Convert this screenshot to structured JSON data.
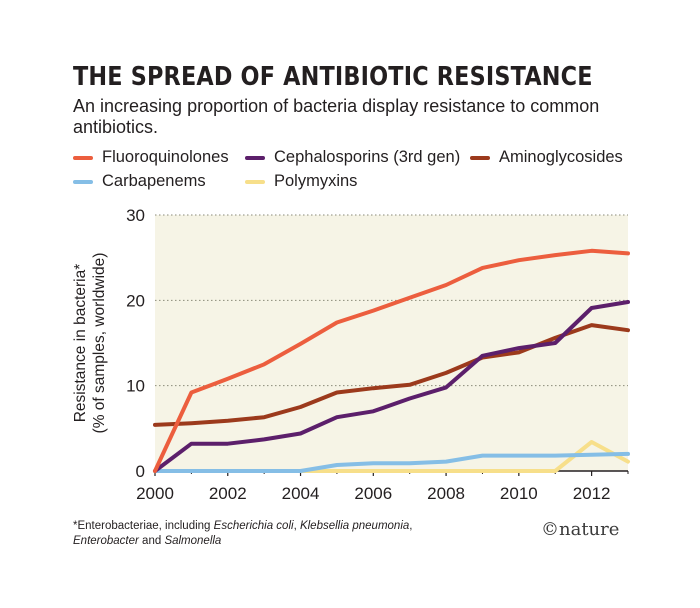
{
  "chart_data": {
    "type": "line",
    "title": "THE SPREAD OF ANTIBIOTIC RESISTANCE",
    "subtitle": "An increasing proportion of bacteria display resistance to common antibiotics.",
    "ylabel_line1": "Resistance in bacteria*",
    "ylabel_line2": "(% of samples, worldwide)",
    "xlabel": "",
    "ylim": [
      0,
      30
    ],
    "xlim": [
      2000,
      2013
    ],
    "x_ticks": [
      "2000",
      "2002",
      "2004",
      "2006",
      "2008",
      "2010",
      "2012"
    ],
    "y_ticks": [
      "0",
      "10",
      "20",
      "30"
    ],
    "grid": "horizontal dotted",
    "legend_position": "top",
    "x": [
      2000,
      2001,
      2002,
      2003,
      2004,
      2005,
      2006,
      2007,
      2008,
      2009,
      2010,
      2011,
      2012,
      2013
    ],
    "series": [
      {
        "name": "Fluoroquinolones",
        "color": "#ec5e3e",
        "values": [
          0,
          9.2,
          10.8,
          12.5,
          14.9,
          17.4,
          18.8,
          20.3,
          21.8,
          23.8,
          24.7,
          25.3,
          25.8,
          25.5
        ]
      },
      {
        "name": "Cephalosporins (3rd gen)",
        "color": "#5c1f6b",
        "values": [
          0,
          3.2,
          3.2,
          3.7,
          4.4,
          6.3,
          7.0,
          8.5,
          9.8,
          13.5,
          14.4,
          15.0,
          19.1,
          19.8
        ]
      },
      {
        "name": "Aminoglycosides",
        "color": "#9c3a1c",
        "values": [
          5.4,
          5.6,
          5.9,
          6.3,
          7.5,
          9.2,
          9.7,
          10.1,
          11.5,
          13.3,
          13.9,
          15.6,
          17.1,
          16.5
        ]
      },
      {
        "name": "Carbapenems",
        "color": "#85bee6",
        "values": [
          0,
          0,
          0,
          0,
          0,
          0.7,
          0.9,
          0.9,
          1.1,
          1.8,
          1.8,
          1.8,
          1.9,
          2.0
        ]
      },
      {
        "name": "Polymyxins",
        "color": "#f7df8a",
        "values": [
          0,
          0,
          0,
          0,
          0,
          0,
          0,
          0,
          0,
          0,
          0,
          0,
          3.4,
          1.1
        ]
      }
    ],
    "footnote_prefix": "*Enterobacteriae, including ",
    "footnote_sp1": "Escherichia coli",
    "footnote_sep1": ", ",
    "footnote_sp2": "Klebsellia pneumonia",
    "footnote_sep2": ",",
    "footnote_sp3": "Enterobacter",
    "footnote_and": " and ",
    "footnote_sp4": "Salmonella",
    "credit": "©nature"
  }
}
